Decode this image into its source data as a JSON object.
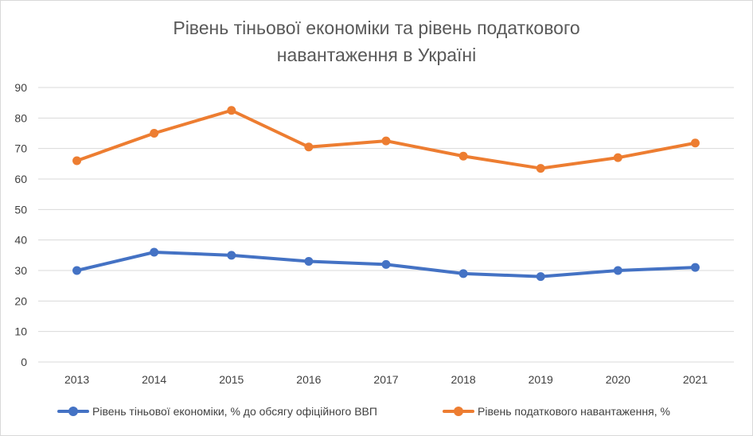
{
  "chart_data": {
    "type": "line",
    "title_line1": "Рівень тіньової економіки та рівень податкового",
    "title_line2": "навантаження в Україні",
    "categories": [
      "2013",
      "2014",
      "2015",
      "2016",
      "2017",
      "2018",
      "2019",
      "2020",
      "2021"
    ],
    "ylim": [
      0,
      90
    ],
    "yticks": [
      "0",
      "10",
      "20",
      "30",
      "40",
      "50",
      "60",
      "70",
      "80",
      "90"
    ],
    "grid": true,
    "legend_position": "bottom",
    "series": [
      {
        "name": "Рівень тіньової економіки, % до обсягу офіційного ВВП",
        "color": "#4472C4",
        "values": [
          30,
          36,
          35,
          33,
          32,
          29,
          28,
          30,
          31
        ]
      },
      {
        "name": "Рівень податкового навантаження, %",
        "color": "#ED7D31",
        "values": [
          66,
          75,
          82.5,
          70.5,
          72.5,
          67.5,
          63.5,
          67,
          71.8
        ]
      }
    ]
  }
}
